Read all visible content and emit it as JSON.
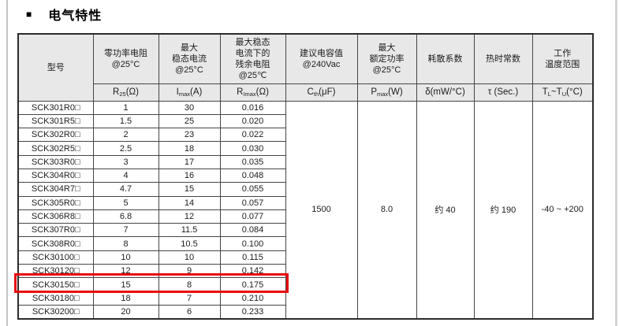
{
  "title": {
    "bullet": "■",
    "text": "电气特性"
  },
  "table": {
    "columns": [
      {
        "key": "model",
        "width": 95,
        "title_lines": [
          "型号"
        ],
        "symbol": null
      },
      {
        "key": "r25",
        "width": 83,
        "title_lines": [
          "零功率电阻",
          "@25°C"
        ],
        "symbol": [
          {
            "t": "R"
          },
          {
            "t": "25",
            "sub": true
          },
          {
            "t": "(Ω)"
          }
        ]
      },
      {
        "key": "imax",
        "width": 78,
        "title_lines": [
          "最大",
          "稳态电流",
          "@25°C"
        ],
        "symbol": [
          {
            "t": "I"
          },
          {
            "t": "max",
            "sub": true
          },
          {
            "t": "(A)"
          }
        ]
      },
      {
        "key": "rimax",
        "width": 83,
        "title_lines": [
          "最大稳态",
          "电流下的",
          "残余电阻",
          "@25℃"
        ],
        "symbol": [
          {
            "t": "R"
          },
          {
            "t": "Imax",
            "sub": true
          },
          {
            "t": "(Ω)"
          }
        ]
      },
      {
        "key": "cth",
        "width": 91,
        "title_lines": [
          "建议电容值",
          "@240Vac"
        ],
        "symbol": [
          {
            "t": "C"
          },
          {
            "t": "th",
            "sub": true
          },
          {
            "t": "(μF)"
          }
        ]
      },
      {
        "key": "pmax",
        "width": 75,
        "title_lines": [
          "最大",
          "额定功率",
          "@25°C"
        ],
        "symbol": [
          {
            "t": "P"
          },
          {
            "t": "max",
            "sub": true
          },
          {
            "t": "(W)"
          }
        ]
      },
      {
        "key": "delta",
        "width": 73,
        "title_lines": [
          "耗散系数"
        ],
        "symbol": [
          {
            "t": "δ(mW/°C)"
          }
        ]
      },
      {
        "key": "tau",
        "width": 74,
        "title_lines": [
          "热时常数"
        ],
        "symbol": [
          {
            "t": "τ (Sec.)"
          }
        ]
      },
      {
        "key": "trange",
        "width": 77,
        "title_lines": [
          "工作",
          "温度范围"
        ],
        "symbol": [
          {
            "t": "T"
          },
          {
            "t": "L",
            "sub": true
          },
          {
            "t": "~T"
          },
          {
            "t": "U",
            "sub": true
          },
          {
            "t": "(°C)"
          }
        ]
      }
    ],
    "rows": [
      {
        "model": "SCK301R0□",
        "r25": "1",
        "imax": "30",
        "rimax": "0.016"
      },
      {
        "model": "SCK301R5□",
        "r25": "1.5",
        "imax": "25",
        "rimax": "0.020"
      },
      {
        "model": "SCK302R0□",
        "r25": "2",
        "imax": "23",
        "rimax": "0.022"
      },
      {
        "model": "SCK302R5□",
        "r25": "2.5",
        "imax": "18",
        "rimax": "0.030"
      },
      {
        "model": "SCK303R0□",
        "r25": "3",
        "imax": "17",
        "rimax": "0.035"
      },
      {
        "model": "SCK304R0□",
        "r25": "4",
        "imax": "16",
        "rimax": "0.048"
      },
      {
        "model": "SCK304R7□",
        "r25": "4.7",
        "imax": "15",
        "rimax": "0.055"
      },
      {
        "model": "SCK305R0□",
        "r25": "5",
        "imax": "14",
        "rimax": "0.057"
      },
      {
        "model": "SCK306R8□",
        "r25": "6.8",
        "imax": "12",
        "rimax": "0.077"
      },
      {
        "model": "SCK307R0□",
        "r25": "7",
        "imax": "11.5",
        "rimax": "0.084"
      },
      {
        "model": "SCK308R0□",
        "r25": "8",
        "imax": "10.5",
        "rimax": "0.100"
      },
      {
        "model": "SCK30100□",
        "r25": "10",
        "imax": "10",
        "rimax": "0.115"
      },
      {
        "model": "SCK30120□",
        "r25": "12",
        "imax": "9",
        "rimax": "0.142"
      },
      {
        "model": "SCK30150□",
        "r25": "15",
        "imax": "8",
        "rimax": "0.175"
      },
      {
        "model": "SCK30180□",
        "r25": "18",
        "imax": "7",
        "rimax": "0.210"
      },
      {
        "model": "SCK30200□",
        "r25": "20",
        "imax": "6",
        "rimax": "0.233"
      }
    ],
    "merged_values": {
      "cth": "1500",
      "pmax": "8.0",
      "delta": "约 40",
      "tau": "约 190",
      "trange": "-40 ~ +200"
    },
    "highlighted_model": "SCK30150□",
    "highlight_color": "#e80b0b",
    "header_bg": "#e8e8e8"
  }
}
